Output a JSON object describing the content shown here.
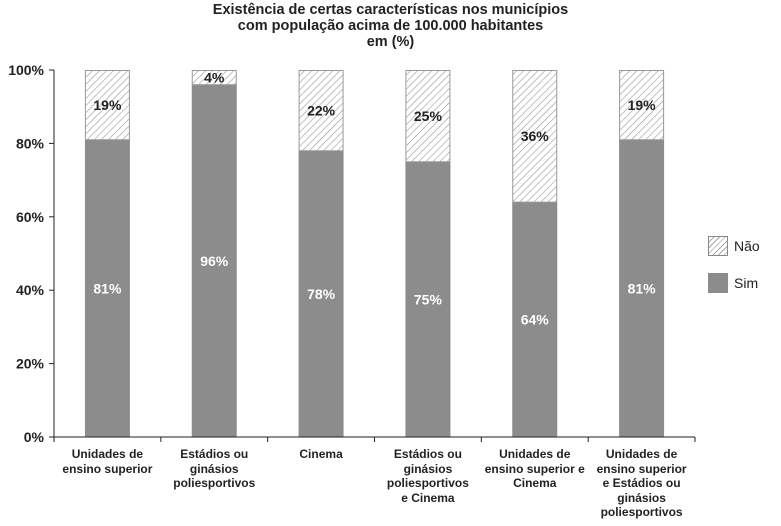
{
  "chart_data": {
    "type": "bar",
    "stacked": true,
    "title": "Existência de certas características nos municípios\ncom população acima de 100.000 habitantes\nem (%)",
    "categories": [
      "Unidades de\nensino superior",
      "Estádios ou\nginásios\npoliesportivos",
      "Cinema",
      "Estádios ou\nginásios\npoliesportivos\ne Cinema",
      "Unidades de\nensino superior e\nCinema",
      "Unidades de\nensino superior\ne Estádios ou\nginásios\npoliesportivos"
    ],
    "series": [
      {
        "name": "Sim",
        "values": [
          81,
          96,
          78,
          75,
          64,
          81
        ],
        "labels": [
          "81%",
          "96%",
          "78%",
          "75%",
          "64%",
          "81%"
        ],
        "color": "#8c8c8c"
      },
      {
        "name": "Não",
        "values": [
          19,
          4,
          22,
          25,
          36,
          19
        ],
        "labels": [
          "19%",
          "4%",
          "22%",
          "25%",
          "36%",
          "19%"
        ],
        "color": "#ffffff",
        "pattern": "diagonal-hatch"
      }
    ],
    "ylim": [
      0,
      100
    ],
    "yticks": [
      "0%",
      "20%",
      "40%",
      "60%",
      "80%",
      "100%"
    ],
    "grid": false,
    "legend_position": "right"
  }
}
